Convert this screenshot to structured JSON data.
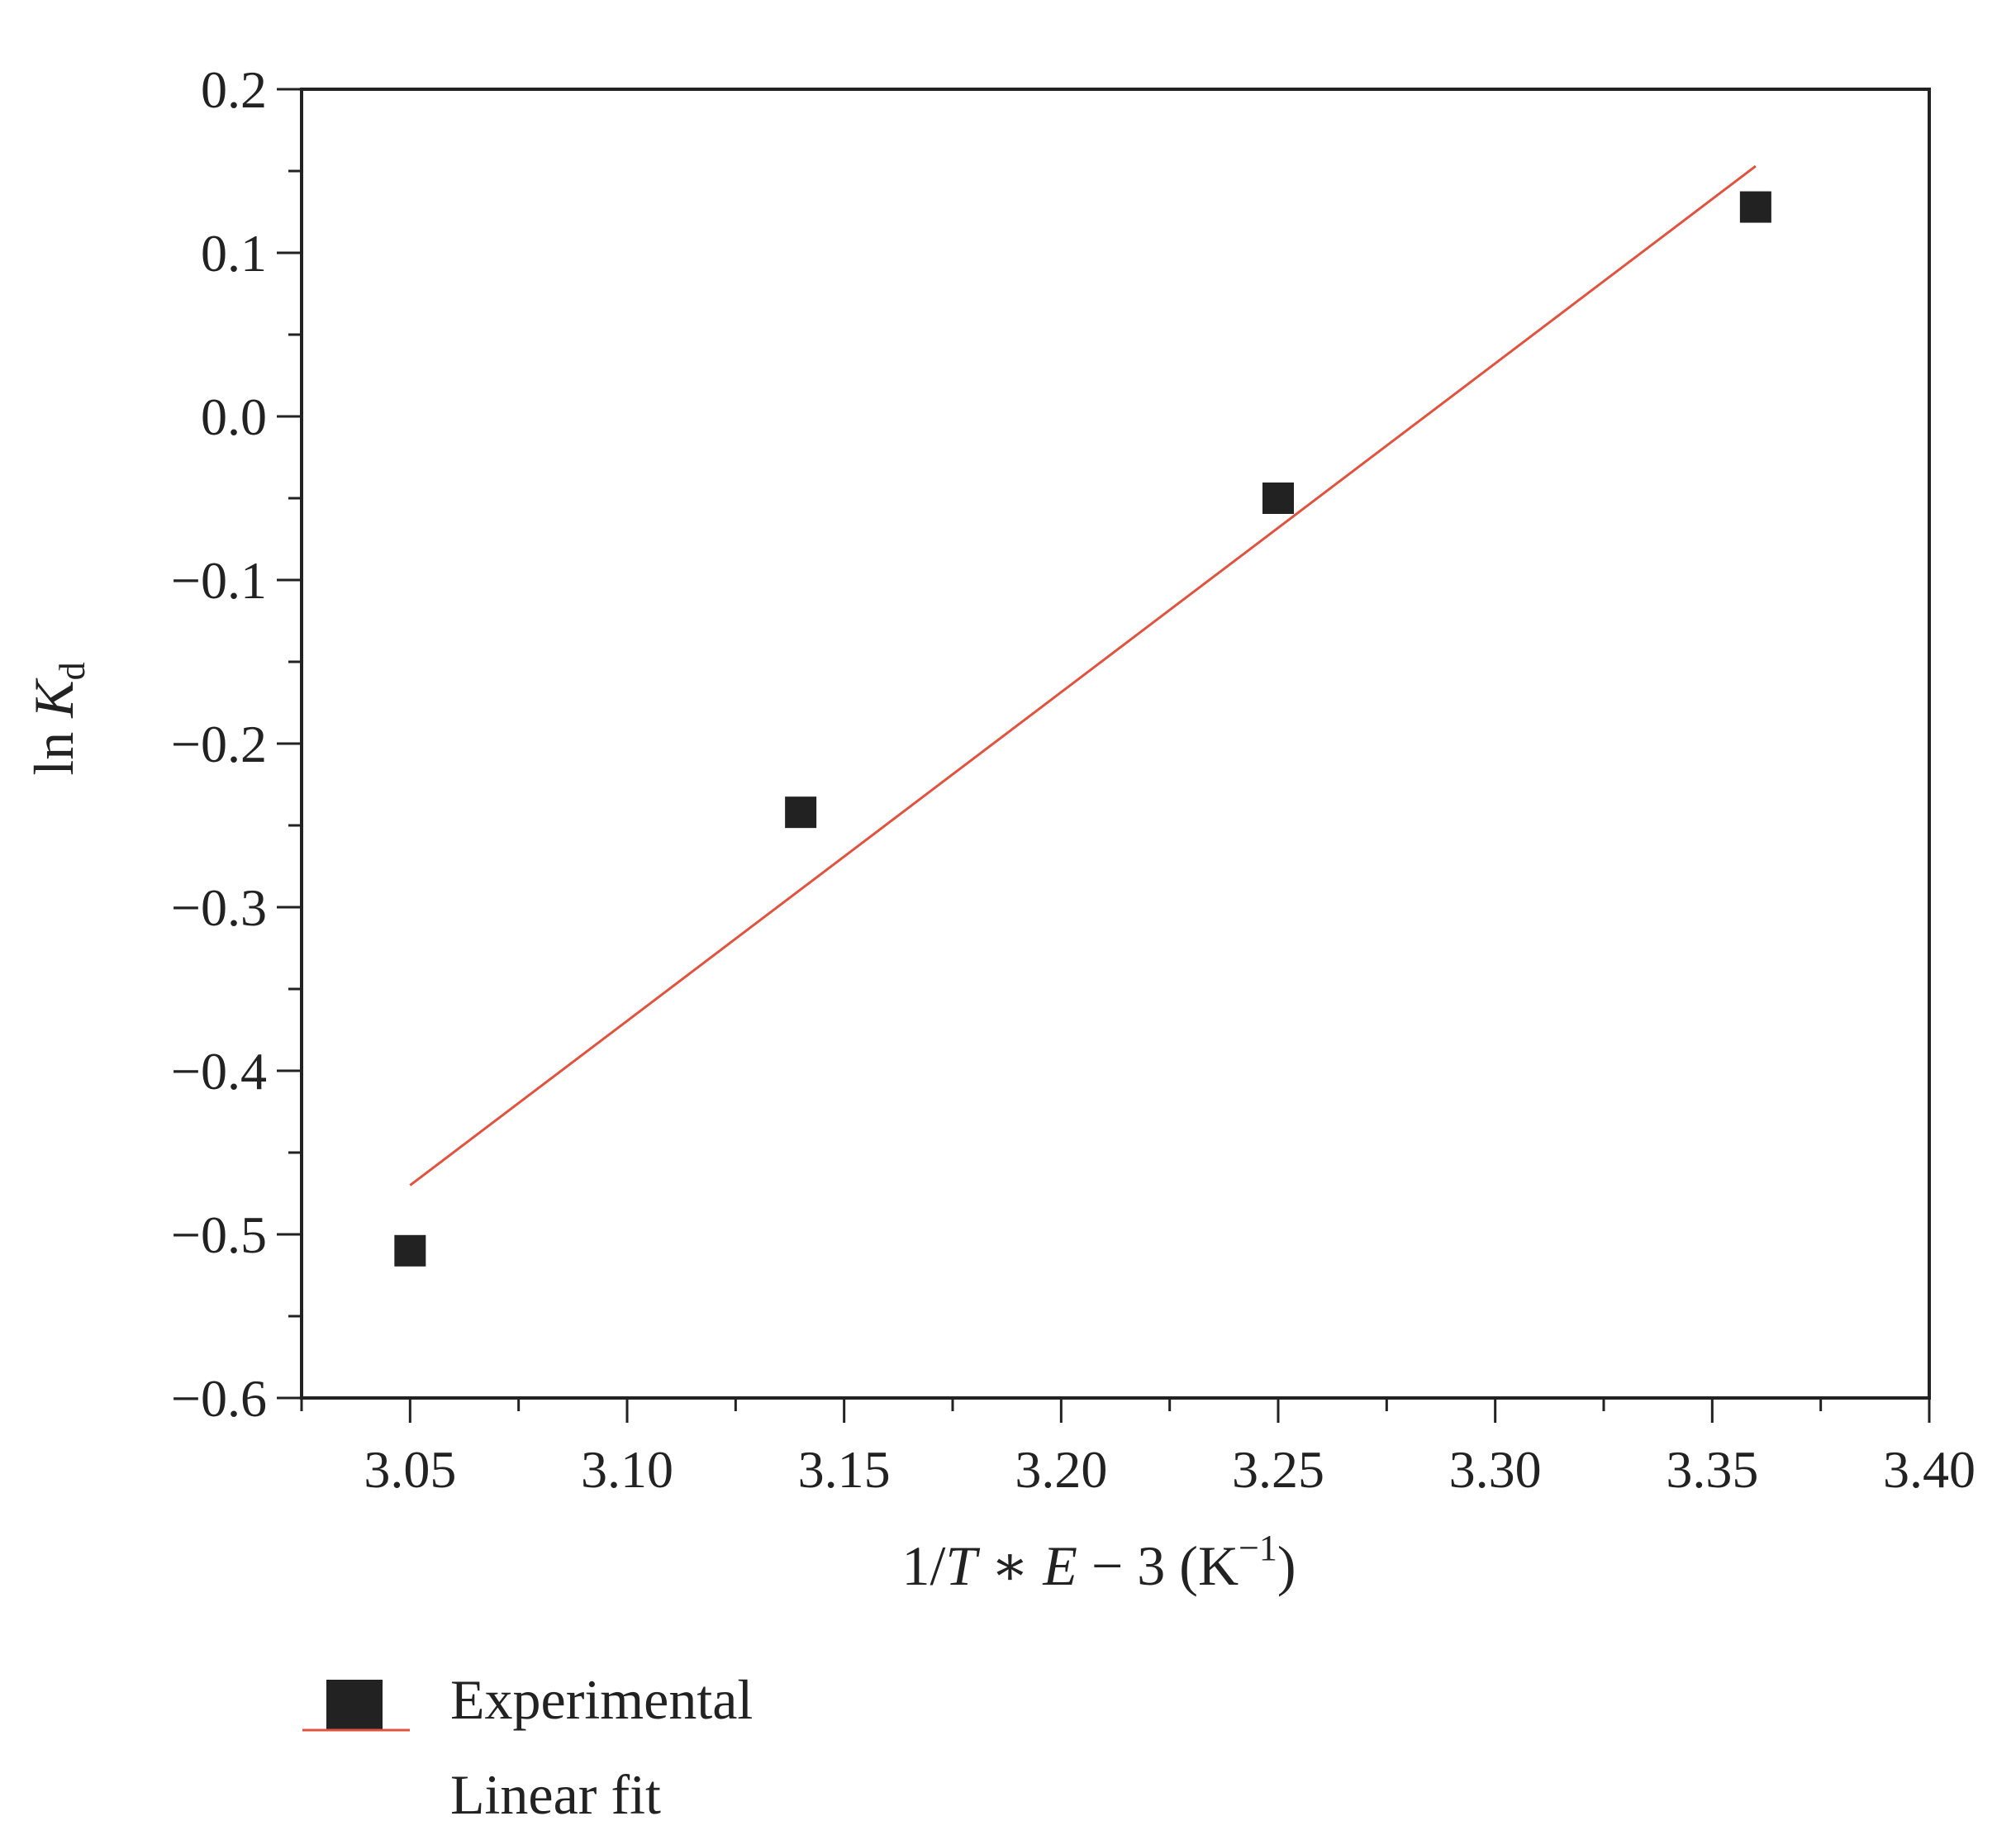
{
  "chart_data": {
    "type": "scatter",
    "title": "",
    "xlabel": {
      "prefix": "1/",
      "T": "T",
      "op": " ∗ ",
      "E": "E",
      "suffix": " − 3 (K",
      "sup": "−1",
      "close": ")"
    },
    "ylabel": {
      "prefix": "ln ",
      "K": "K",
      "sub": "d"
    },
    "xlim": [
      3.025,
      3.4
    ],
    "ylim": [
      -0.6,
      0.2
    ],
    "x_ticks": [
      "3.05",
      "3.10",
      "3.15",
      "3.20",
      "3.25",
      "3.30",
      "3.35",
      "3.40"
    ],
    "y_ticks": [
      "0.2",
      "0.1",
      "0.0",
      "−0.1",
      "−0.2",
      "−0.3",
      "−0.4",
      "−0.5",
      "−0.6"
    ],
    "grid": false,
    "legend_position": "bottom-left",
    "series": [
      {
        "name": "Experimental",
        "kind": "scatter",
        "marker": "square",
        "color": "#222222",
        "x": [
          3.05,
          3.14,
          3.25,
          3.36
        ],
        "y": [
          -0.51,
          -0.242,
          -0.05,
          0.128
        ]
      },
      {
        "name": "Linear fit",
        "kind": "line",
        "color": "#e0533f",
        "x": [
          3.05,
          3.36
        ],
        "y": [
          -0.47,
          0.153
        ]
      }
    ]
  }
}
